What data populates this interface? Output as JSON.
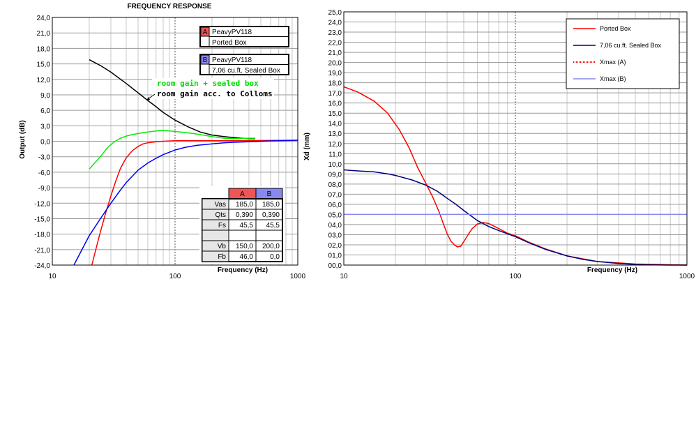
{
  "chart_data": [
    {
      "type": "line",
      "title": "FREQUENCY RESPONSE",
      "xlabel": "Frequency (Hz)",
      "ylabel": "Output (dB)",
      "xscale": "log",
      "xlim": [
        10,
        1000
      ],
      "ylim": [
        -24,
        24
      ],
      "x_ticks": [
        "10",
        "100",
        "1000"
      ],
      "y_ticks": [
        "24,0",
        "21,0",
        "18,0",
        "15,0",
        "12,0",
        "9,0",
        "6,0",
        "3,0",
        "0,0",
        "-3,0",
        "-6,0",
        "-9,0",
        "-12,0",
        "-15,0",
        "-18,0",
        "-21,0",
        "-24,0"
      ],
      "grid": true,
      "series": [
        {
          "name": "room gain acc. to Colloms",
          "color": "#000000",
          "x": [
            20,
            25,
            30,
            40,
            50,
            60,
            70,
            80,
            100,
            130,
            160,
            200,
            250,
            300,
            350,
            400,
            450
          ],
          "y": [
            15.8,
            14.6,
            13.4,
            11.2,
            9.4,
            7.9,
            6.7,
            5.6,
            4.1,
            2.7,
            1.8,
            1.2,
            0.9,
            0.7,
            0.6,
            0.5,
            0.5
          ]
        },
        {
          "name": "room gain + sealed box",
          "color": "#00ee00",
          "x": [
            20,
            22,
            25,
            28,
            32,
            36,
            40,
            45,
            50,
            60,
            70,
            80,
            90,
            100,
            120,
            150,
            200,
            250,
            300,
            400,
            450
          ],
          "y": [
            -5.4,
            -4.3,
            -2.8,
            -1.3,
            -0.1,
            0.6,
            1.0,
            1.3,
            1.5,
            1.8,
            2.0,
            2.1,
            2.0,
            1.9,
            1.7,
            1.4,
            0.9,
            0.6,
            0.5,
            0.6,
            0.6
          ]
        },
        {
          "name": "A",
          "color": "#ff0000",
          "x": [
            21,
            24,
            27,
            30,
            33,
            36,
            40,
            45,
            50,
            55,
            60,
            70,
            80,
            100,
            150,
            200,
            300,
            1000
          ],
          "y": [
            -24,
            -18.6,
            -14.2,
            -10.6,
            -7.6,
            -5.2,
            -3.2,
            -1.8,
            -1.0,
            -0.5,
            -0.3,
            -0.1,
            0.0,
            0.1,
            0.1,
            0.1,
            0.1,
            0.2
          ]
        },
        {
          "name": "B",
          "color": "#0000ff",
          "x": [
            15,
            17,
            20,
            25,
            30,
            35,
            40,
            50,
            60,
            70,
            80,
            100,
            120,
            150,
            200,
            250,
            300,
            400,
            500,
            1000
          ],
          "y": [
            -24,
            -21.5,
            -18.3,
            -14.8,
            -12.0,
            -9.8,
            -8.0,
            -5.6,
            -4.2,
            -3.3,
            -2.6,
            -1.7,
            -1.2,
            -0.8,
            -0.5,
            -0.3,
            -0.2,
            -0.1,
            0.0,
            0.2
          ]
        }
      ],
      "legend": [
        {
          "key": "A",
          "line1": "PeavyPV118",
          "line2": "Ported Box",
          "color": "#ee5555"
        },
        {
          "key": "B",
          "line1": "PeavyPV118",
          "line2": "7,06 cu.ft. Sealed Box",
          "color": "#8888ee"
        }
      ],
      "annotations": [
        {
          "text": "room gain + sealed box",
          "color": "#00dd00"
        },
        {
          "text": "room gain acc. to Colloms",
          "color": "#000000"
        }
      ],
      "table": {
        "headers": [
          "",
          "A",
          "B"
        ],
        "rows": [
          [
            "Vas",
            "185,0",
            "185,0"
          ],
          [
            "Qts",
            "0,390",
            "0,390"
          ],
          [
            "Fs",
            "45,5",
            "45,5"
          ],
          [
            "",
            "",
            ""
          ],
          [
            "Vb",
            "150,0",
            "200,0"
          ],
          [
            "Fb",
            "46,0",
            "0,0"
          ]
        ]
      }
    },
    {
      "type": "line",
      "xlabel": "Frequency (Hz)",
      "ylabel": "Xd (mm)",
      "xscale": "log",
      "xlim": [
        10,
        1000
      ],
      "ylim": [
        0,
        25
      ],
      "x_ticks": [
        "10",
        "100",
        "1000"
      ],
      "y_ticks": [
        "25,0",
        "24,0",
        "23,0",
        "22,0",
        "21,0",
        "20,0",
        "19,0",
        "18,0",
        "17,0",
        "16,0",
        "15,0",
        "14,0",
        "13,0",
        "12,0",
        "11,0",
        "10,0",
        "09,0",
        "08,0",
        "07,0",
        "06,0",
        "05,0",
        "04,0",
        "03,0",
        "02,0",
        "01,0",
        "00,0"
      ],
      "grid": true,
      "legend_position": "top-right",
      "series": [
        {
          "name": "Ported Box",
          "color": "#ff0000",
          "x": [
            10,
            12,
            15,
            18,
            21,
            24,
            27,
            30,
            33,
            36,
            38,
            40,
            42,
            44,
            46,
            48,
            50,
            53,
            56,
            60,
            65,
            70,
            80,
            90,
            100,
            120,
            150,
            200,
            300,
            500,
            1000
          ],
          "y": [
            17.6,
            17.1,
            16.2,
            15.0,
            13.4,
            11.6,
            9.6,
            8.1,
            6.7,
            5.2,
            4.1,
            3.1,
            2.4,
            2.0,
            1.8,
            1.85,
            2.3,
            3.0,
            3.6,
            4.05,
            4.2,
            4.1,
            3.6,
            3.15,
            2.9,
            2.25,
            1.6,
            0.9,
            0.35,
            0.1,
            0.0
          ]
        },
        {
          "name": "7,06 cu.ft. Sealed Box",
          "color": "#000080",
          "x": [
            10,
            12,
            15,
            18,
            20,
            25,
            30,
            35,
            40,
            45,
            50,
            60,
            70,
            80,
            100,
            120,
            150,
            200,
            250,
            300,
            400,
            500,
            600,
            800,
            1000
          ],
          "y": [
            9.4,
            9.3,
            9.2,
            9.0,
            8.85,
            8.4,
            7.9,
            7.3,
            6.6,
            6.0,
            5.4,
            4.4,
            3.8,
            3.4,
            2.8,
            2.2,
            1.55,
            0.9,
            0.55,
            0.35,
            0.15,
            0.07,
            0.03,
            0.0,
            0.0
          ]
        },
        {
          "name": "Xmax (A)",
          "color": "#ff0000",
          "style": "dotted",
          "x": [
            10,
            1000
          ],
          "y": [
            5.0,
            5.0
          ]
        },
        {
          "name": "Xmax (B)",
          "color": "#8888ee",
          "x": [
            10,
            1000
          ],
          "y": [
            5.0,
            5.0
          ]
        }
      ]
    }
  ]
}
